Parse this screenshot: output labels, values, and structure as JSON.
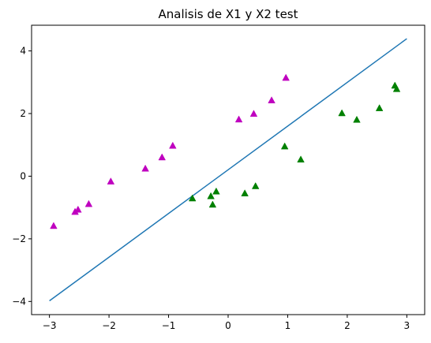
{
  "chart_data": {
    "type": "scatter",
    "title": "Analisis de X1 y X2 test",
    "xlabel": "",
    "ylabel": "",
    "xlim": [
      -3.3,
      3.3
    ],
    "ylim": [
      -4.42,
      4.82
    ],
    "xticks": [
      -3,
      -2,
      -1,
      0,
      1,
      2,
      3
    ],
    "yticks": [
      -4,
      -2,
      0,
      2,
      4
    ],
    "xtick_labels": [
      "−3",
      "−2",
      "−1",
      "0",
      "1",
      "2",
      "3"
    ],
    "ytick_labels": [
      "−4",
      "−2",
      "0",
      "2",
      "4"
    ],
    "grid": false,
    "series": [
      {
        "kind": "scatter",
        "marker": "triangle",
        "color": "#bf00bf",
        "points": [
          [
            -2.93,
            -1.6
          ],
          [
            -2.57,
            -1.15
          ],
          [
            -2.52,
            -1.08
          ],
          [
            -2.34,
            -0.9
          ],
          [
            -1.97,
            -0.18
          ],
          [
            -1.39,
            0.23
          ],
          [
            -1.11,
            0.59
          ],
          [
            -0.93,
            0.96
          ],
          [
            0.18,
            1.8
          ],
          [
            0.43,
            1.98
          ],
          [
            0.73,
            2.41
          ],
          [
            0.97,
            3.13
          ]
        ]
      },
      {
        "kind": "scatter",
        "marker": "triangle",
        "color": "#008000",
        "points": [
          [
            -0.6,
            -0.72
          ],
          [
            -0.29,
            -0.65
          ],
          [
            -0.26,
            -0.92
          ],
          [
            -0.2,
            -0.5
          ],
          [
            0.28,
            -0.56
          ],
          [
            0.46,
            -0.33
          ],
          [
            0.95,
            0.94
          ],
          [
            1.22,
            0.52
          ],
          [
            1.91,
            2.0
          ],
          [
            2.16,
            1.79
          ],
          [
            2.54,
            2.16
          ],
          [
            2.8,
            2.88
          ],
          [
            2.83,
            2.77
          ]
        ]
      },
      {
        "kind": "line",
        "color": "#1f77b4",
        "x": [
          -3,
          3
        ],
        "y": [
          -3.98,
          4.39
        ]
      }
    ]
  }
}
